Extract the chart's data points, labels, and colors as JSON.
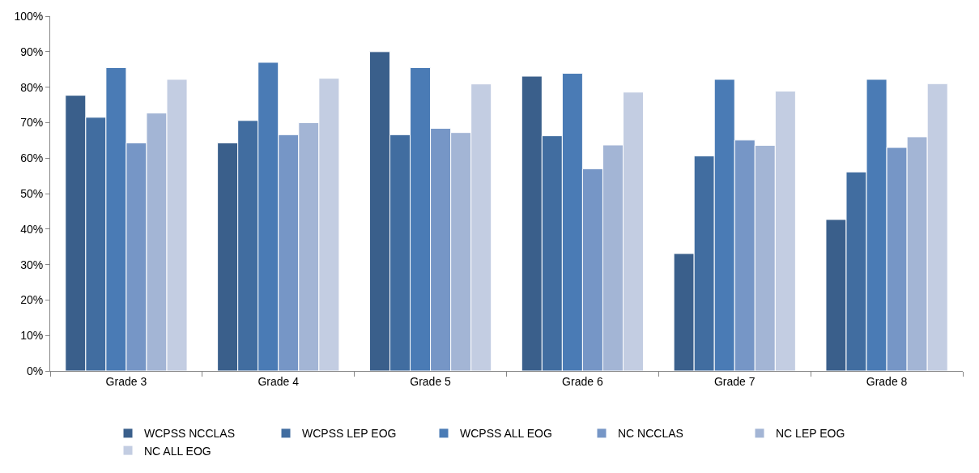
{
  "chart_data": {
    "type": "bar",
    "categories": [
      "Grade 3",
      "Grade 4",
      "Grade 5",
      "Grade 6",
      "Grade 7",
      "Grade 8"
    ],
    "series": [
      {
        "name": "WCPSS NCCLAS",
        "color": "#3a5f8b",
        "values": [
          77.7,
          64.3,
          90.0,
          83.1,
          33.1,
          42.7
        ]
      },
      {
        "name": "WCPSS LEP EOG",
        "color": "#416da0",
        "values": [
          71.5,
          70.6,
          66.6,
          66.3,
          60.6,
          56.1
        ]
      },
      {
        "name": "WCPSS ALL EOG",
        "color": "#4a7bb5",
        "values": [
          85.5,
          87.0,
          85.5,
          83.9,
          82.2,
          82.2
        ]
      },
      {
        "name": "NC NCCLAS",
        "color": "#7696c6",
        "values": [
          64.3,
          66.6,
          68.4,
          57.0,
          65.1,
          63.0
        ]
      },
      {
        "name": "NC LEP EOG",
        "color": "#a3b5d5",
        "values": [
          72.7,
          70.0,
          67.2,
          63.7,
          63.6,
          66.0
        ]
      },
      {
        "name": "NC ALL EOG",
        "color": "#c3cde2",
        "values": [
          82.2,
          82.5,
          80.9,
          78.6,
          78.9,
          81.0
        ]
      }
    ],
    "ylim": [
      0,
      100
    ],
    "yticks": [
      {
        "value": 0,
        "label": "0%"
      },
      {
        "value": 10,
        "label": "10%"
      },
      {
        "value": 20,
        "label": "20%"
      },
      {
        "value": 30,
        "label": "30%"
      },
      {
        "value": 40,
        "label": "40%"
      },
      {
        "value": 50,
        "label": "50%"
      },
      {
        "value": 60,
        "label": "60%"
      },
      {
        "value": 70,
        "label": "70%"
      },
      {
        "value": 80,
        "label": "80%"
      },
      {
        "value": 90,
        "label": "90%"
      },
      {
        "value": 100,
        "label": "100%"
      }
    ],
    "legend": "bottom"
  }
}
